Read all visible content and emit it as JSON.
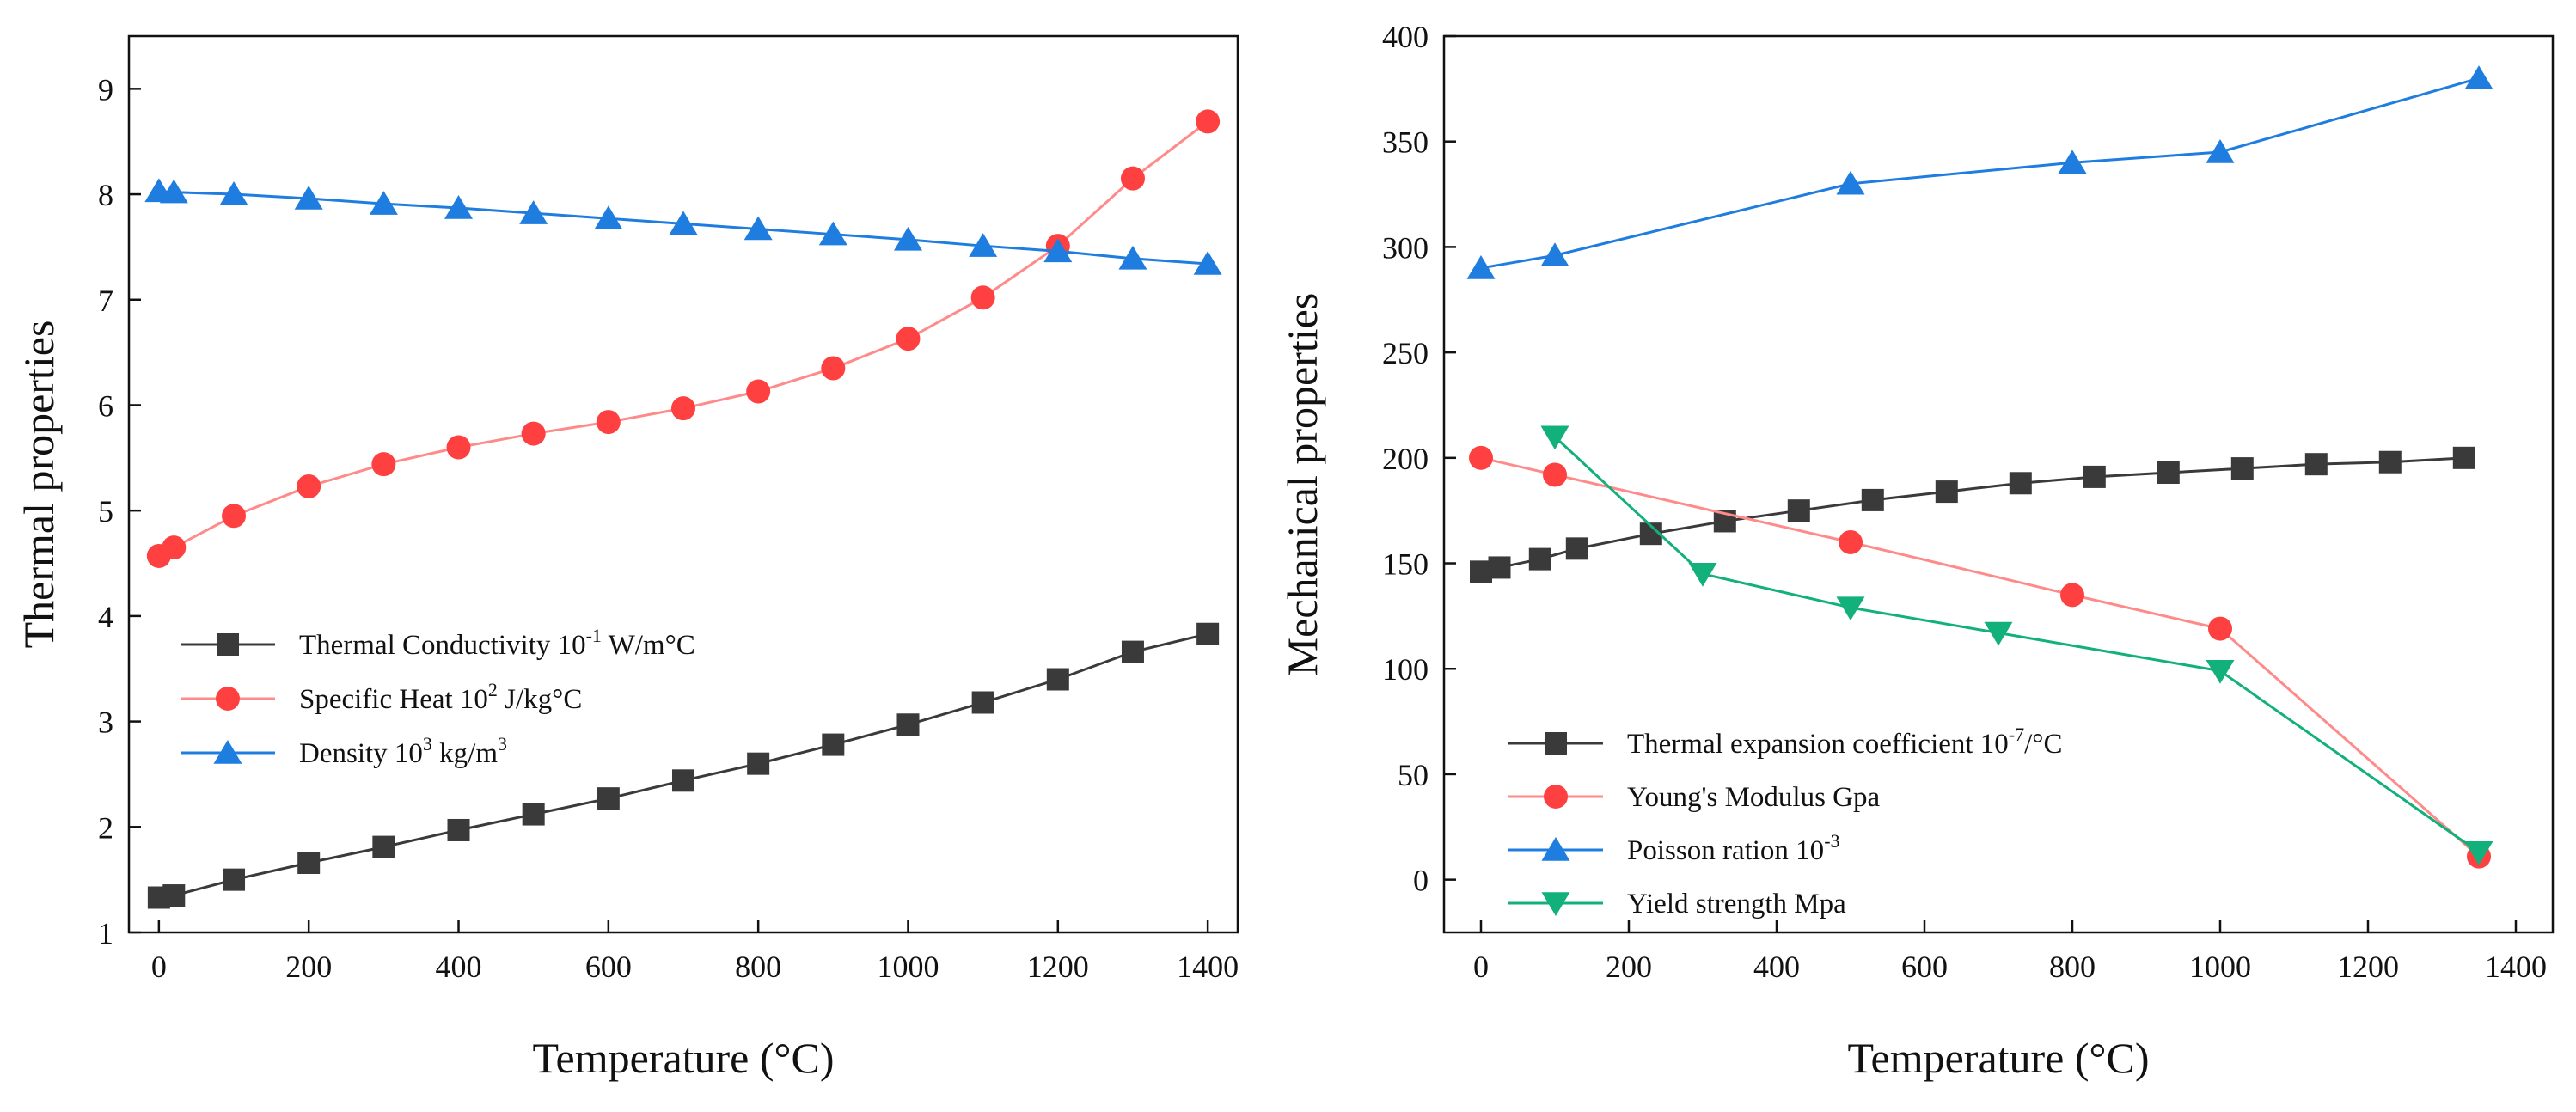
{
  "chart_data": [
    {
      "type": "line",
      "title": "",
      "xlabel": "Temperature (°C)",
      "ylabel": "Thermal properties",
      "xlim": [
        -40,
        1440
      ],
      "ylim": [
        1,
        9.5
      ],
      "xticks": [
        0,
        200,
        400,
        600,
        800,
        1000,
        1200,
        1400
      ],
      "yticks": [
        1,
        2,
        3,
        4,
        5,
        6,
        7,
        8,
        9
      ],
      "legend_position": "bottom-left",
      "series": [
        {
          "name": "Thermal Conductivity",
          "legend_parts": [
            {
              "t": "Thermal Conductivity 10",
              "s": "normal"
            },
            {
              "t": "-1",
              "s": "sup"
            },
            {
              "t": " W/m°C",
              "s": "normal"
            }
          ],
          "color": "#3a3a3a",
          "marker": "square",
          "x": [
            0,
            20,
            100,
            200,
            300,
            400,
            500,
            600,
            700,
            800,
            900,
            1000,
            1100,
            1200,
            1300,
            1400
          ],
          "y": [
            1.33,
            1.35,
            1.5,
            1.66,
            1.81,
            1.97,
            2.12,
            2.27,
            2.44,
            2.6,
            2.78,
            2.97,
            3.18,
            3.4,
            3.66,
            3.83
          ]
        },
        {
          "name": "Specific Heat",
          "legend_parts": [
            {
              "t": "Specific Heat 10",
              "s": "normal"
            },
            {
              "t": "2",
              "s": "sup"
            },
            {
              "t": " J/kg°C",
              "s": "normal"
            }
          ],
          "color": "#ff4040",
          "line_color": "#ff8a8a",
          "marker": "circle",
          "x": [
            0,
            20,
            100,
            200,
            300,
            400,
            500,
            600,
            700,
            800,
            900,
            1000,
            1100,
            1200,
            1300,
            1400
          ],
          "y": [
            4.57,
            4.65,
            4.95,
            5.23,
            5.44,
            5.6,
            5.73,
            5.84,
            5.97,
            6.13,
            6.35,
            6.63,
            7.02,
            7.51,
            8.15,
            8.69
          ]
        },
        {
          "name": "Density",
          "legend_parts": [
            {
              "t": "Density 10",
              "s": "normal"
            },
            {
              "t": "3",
              "s": "sup"
            },
            {
              "t": " kg/m",
              "s": "normal"
            },
            {
              "t": "3",
              "s": "sup"
            }
          ],
          "color": "#1f7de0",
          "marker": "triangle-up",
          "x": [
            0,
            20,
            100,
            200,
            300,
            400,
            500,
            600,
            700,
            800,
            900,
            1000,
            1100,
            1200,
            1300,
            1400
          ],
          "y": [
            8.03,
            8.02,
            8.0,
            7.96,
            7.91,
            7.87,
            7.82,
            7.77,
            7.72,
            7.67,
            7.62,
            7.57,
            7.51,
            7.46,
            7.39,
            7.34
          ]
        }
      ]
    },
    {
      "type": "line",
      "title": "",
      "xlabel": "Temperature (°C)",
      "ylabel": "Mechanical properties",
      "xlim": [
        -50,
        1450
      ],
      "ylim": [
        -25,
        400
      ],
      "xticks": [
        0,
        200,
        400,
        600,
        800,
        1000,
        1200,
        1400
      ],
      "yticks": [
        0,
        50,
        100,
        150,
        200,
        250,
        300,
        350,
        400
      ],
      "legend_position": "bottom-left",
      "series": [
        {
          "name": "Thermal expansion coefficient",
          "legend_parts": [
            {
              "t": "Thermal expansion coefficient 10",
              "s": "normal"
            },
            {
              "t": "-7",
              "s": "sup"
            },
            {
              "t": "/°C",
              "s": "normal"
            }
          ],
          "color": "#3a3a3a",
          "marker": "square",
          "x": [
            0,
            25,
            80,
            130,
            230,
            330,
            430,
            530,
            630,
            730,
            830,
            930,
            1030,
            1130,
            1230,
            1330
          ],
          "y": [
            146,
            148,
            152,
            157,
            164,
            170,
            175,
            180,
            184,
            188,
            191,
            193,
            195,
            197,
            198,
            200
          ]
        },
        {
          "name": "Young's Modulus",
          "legend_parts": [
            {
              "t": "Young's Modulus Gpa",
              "s": "normal"
            }
          ],
          "color": "#ff4040",
          "line_color": "#ff8a8a",
          "marker": "circle",
          "x": [
            0,
            100,
            500,
            800,
            1000,
            1350
          ],
          "y": [
            200,
            192,
            160,
            135,
            119,
            11
          ]
        },
        {
          "name": "Poisson ration",
          "legend_parts": [
            {
              "t": "Poisson ration 10",
              "s": "normal"
            },
            {
              "t": "-3",
              "s": "sup"
            }
          ],
          "color": "#1f7de0",
          "marker": "triangle-up",
          "x": [
            0,
            100,
            500,
            800,
            1000,
            1350
          ],
          "y": [
            290,
            296,
            330,
            340,
            345,
            380
          ]
        },
        {
          "name": "Yield strength",
          "legend_parts": [
            {
              "t": "Yield strength Mpa",
              "s": "normal"
            }
          ],
          "color": "#12b07a",
          "marker": "triangle-down",
          "x": [
            100,
            300,
            500,
            700,
            1000,
            1350
          ],
          "y": [
            210,
            145,
            129,
            117,
            99,
            13
          ]
        }
      ]
    }
  ]
}
